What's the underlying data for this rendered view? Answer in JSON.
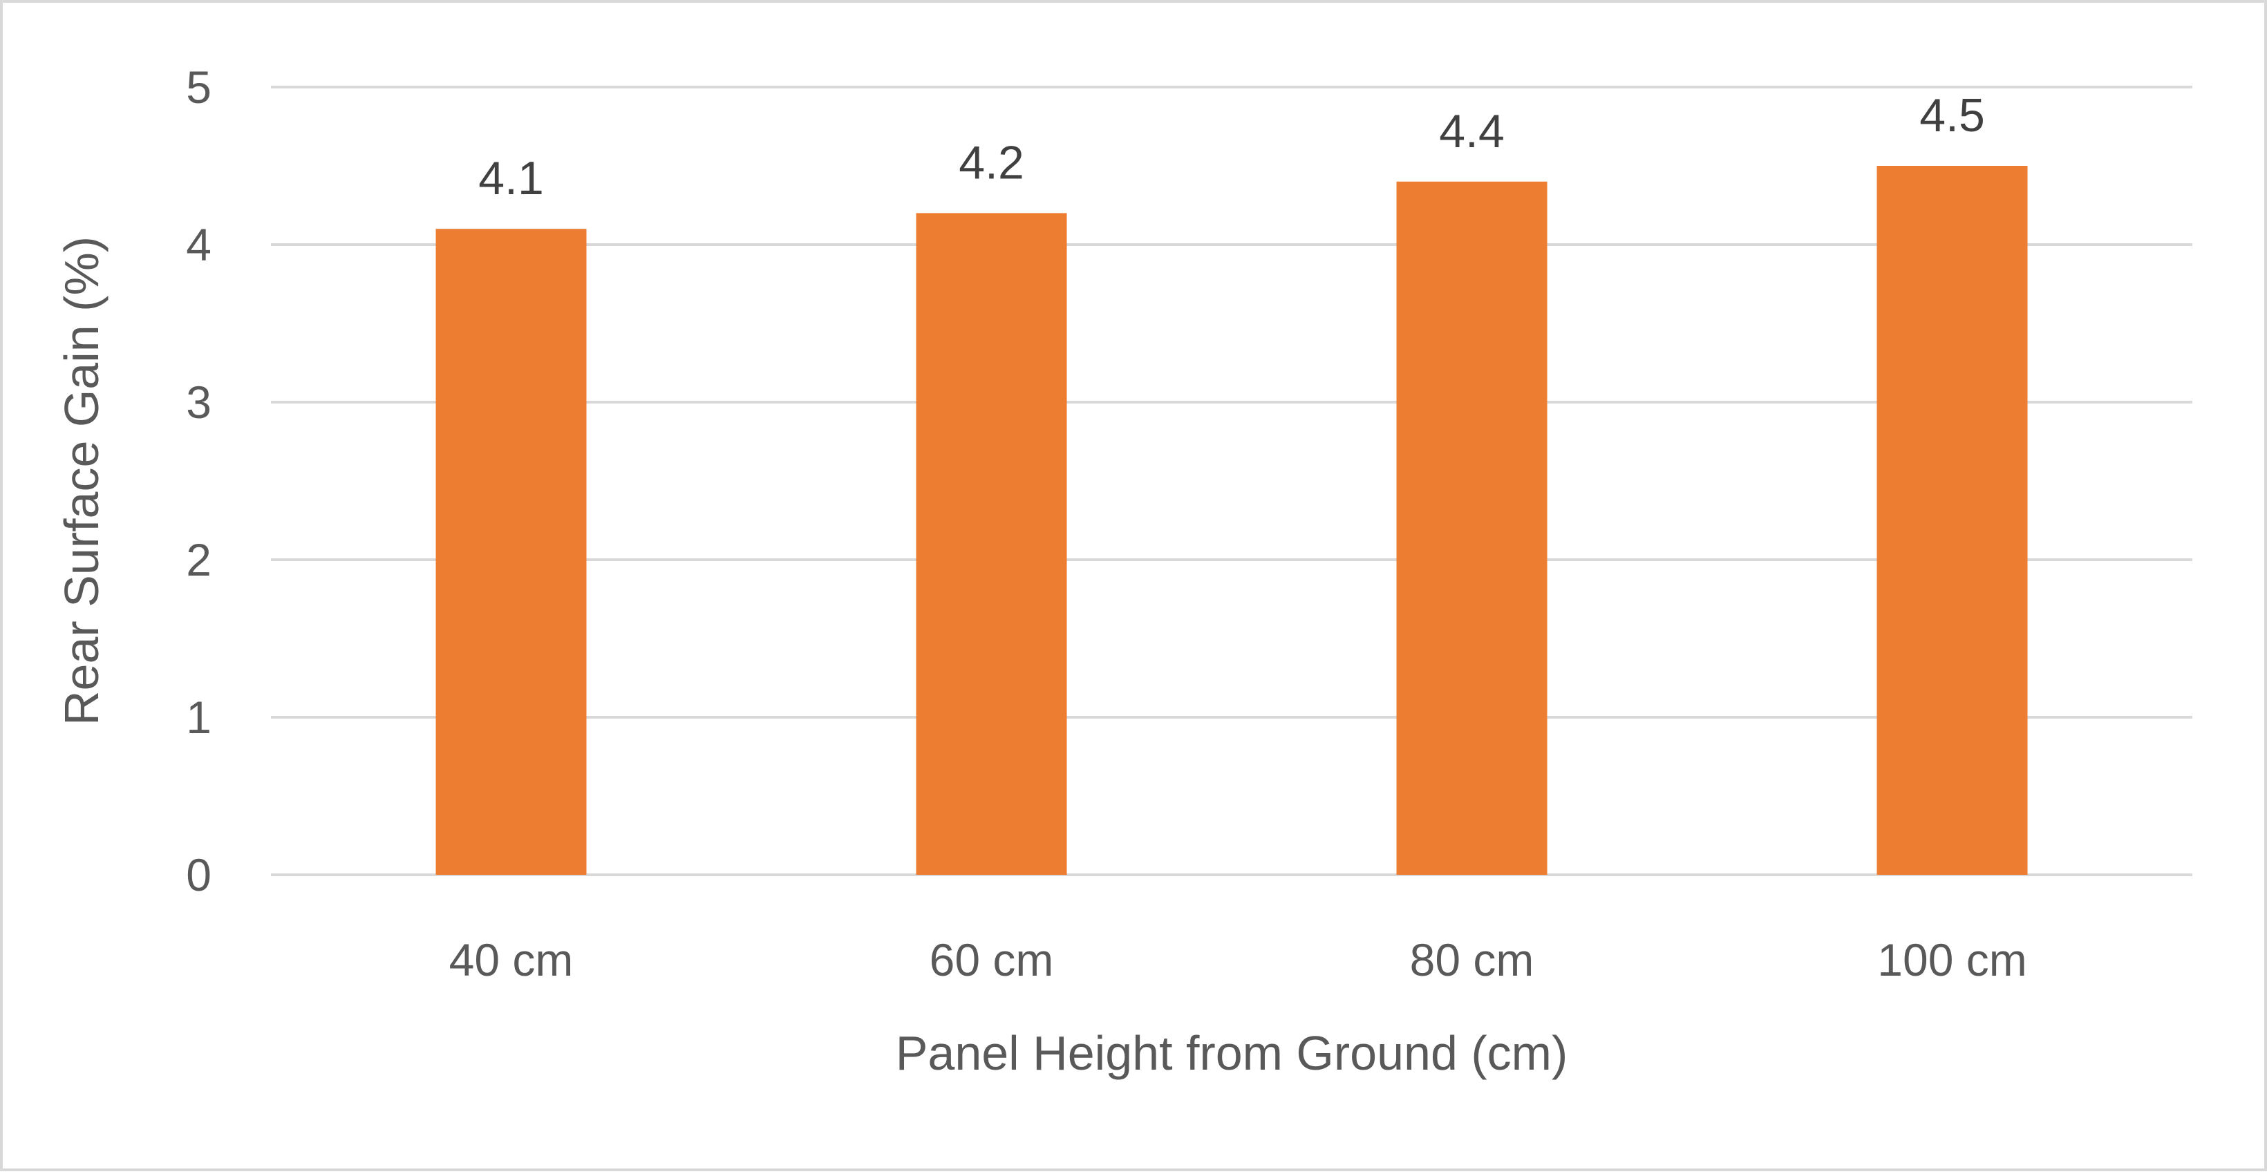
{
  "chart_data": {
    "type": "bar",
    "title": "",
    "categories": [
      "40 cm",
      "60 cm",
      "80 cm",
      "100 cm"
    ],
    "values": [
      4.1,
      4.2,
      4.4,
      4.5
    ],
    "data_labels": [
      "4.1",
      "4.2",
      "4.4",
      "4.5"
    ],
    "xlabel": "Panel Height from Ground (cm)",
    "ylabel": "Rear Surface Gain (%)",
    "ylim": [
      0,
      5
    ],
    "yticks": [
      0,
      1,
      2,
      3,
      4,
      5
    ],
    "ytick_labels": [
      "0",
      "1",
      "2",
      "3",
      "4",
      "5"
    ],
    "grid": true,
    "legend": "none",
    "bar_color": "#ED7D31"
  }
}
